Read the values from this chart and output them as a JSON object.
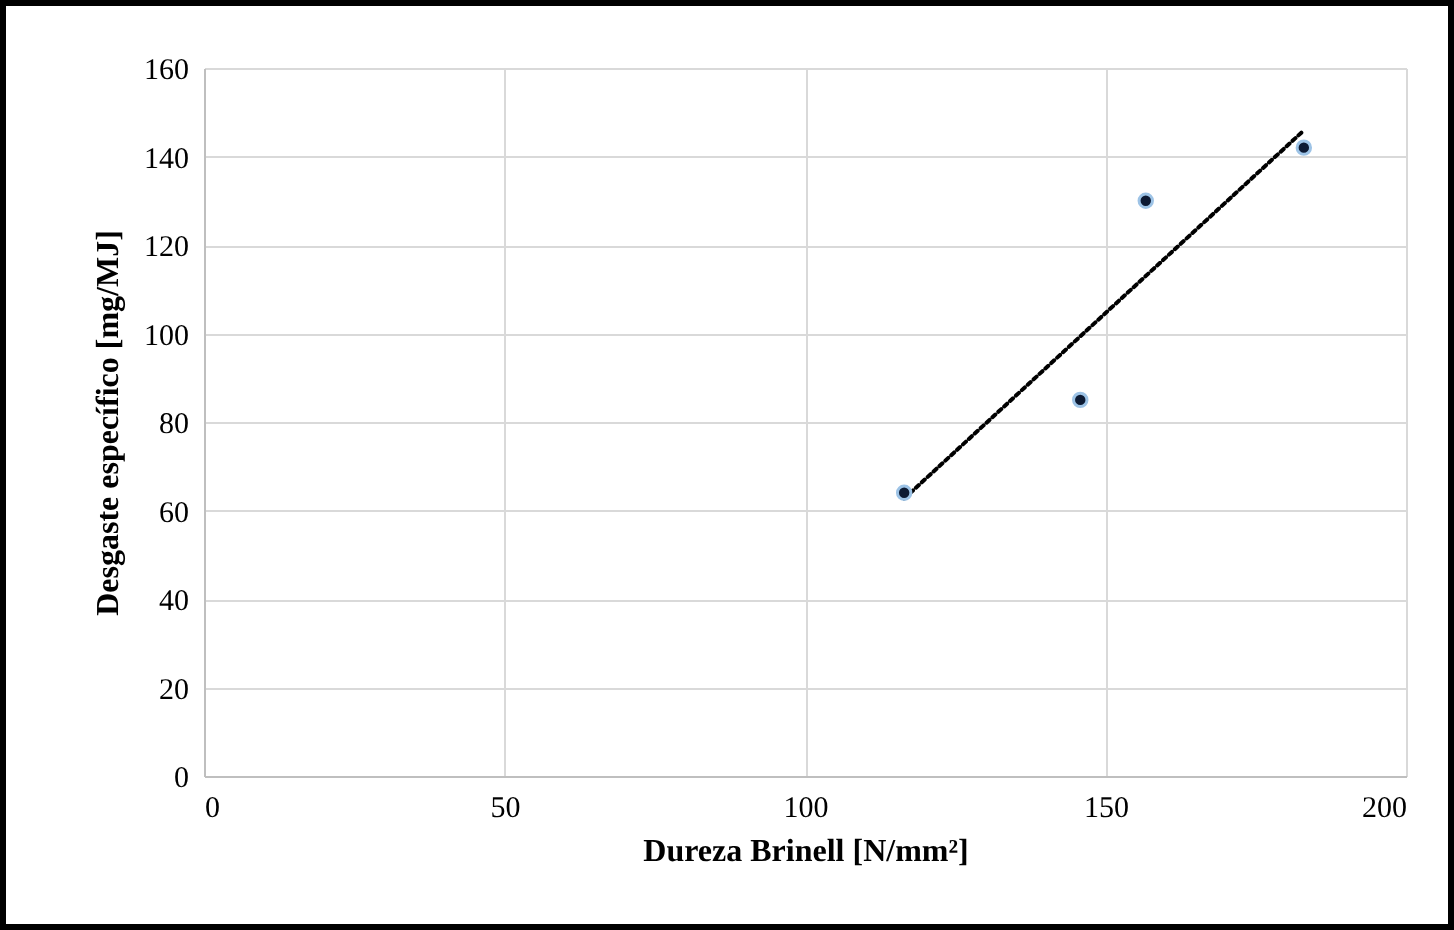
{
  "chart_data": {
    "type": "scatter",
    "xlabel": "Dureza Brinell  [N/mm²]",
    "ylabel": "Desgaste específico [mg/MJ]",
    "xlim": [
      0,
      200
    ],
    "ylim": [
      0,
      160
    ],
    "xticks": [
      0,
      50,
      100,
      150,
      200
    ],
    "yticks": [
      0,
      20,
      40,
      60,
      80,
      100,
      120,
      140,
      160
    ],
    "grid": true,
    "series": [
      {
        "marker": "circle",
        "color": "#0d1a33",
        "x": [
          116.5,
          145.8,
          156.7,
          183
        ],
        "values": [
          64,
          85,
          130,
          142
        ]
      },
      {
        "type": "line",
        "marker": "none",
        "line_style": "dotted",
        "color": "#000000",
        "x": [
          116.5,
          183
        ],
        "values": [
          62.7,
          145.9
        ]
      }
    ]
  }
}
